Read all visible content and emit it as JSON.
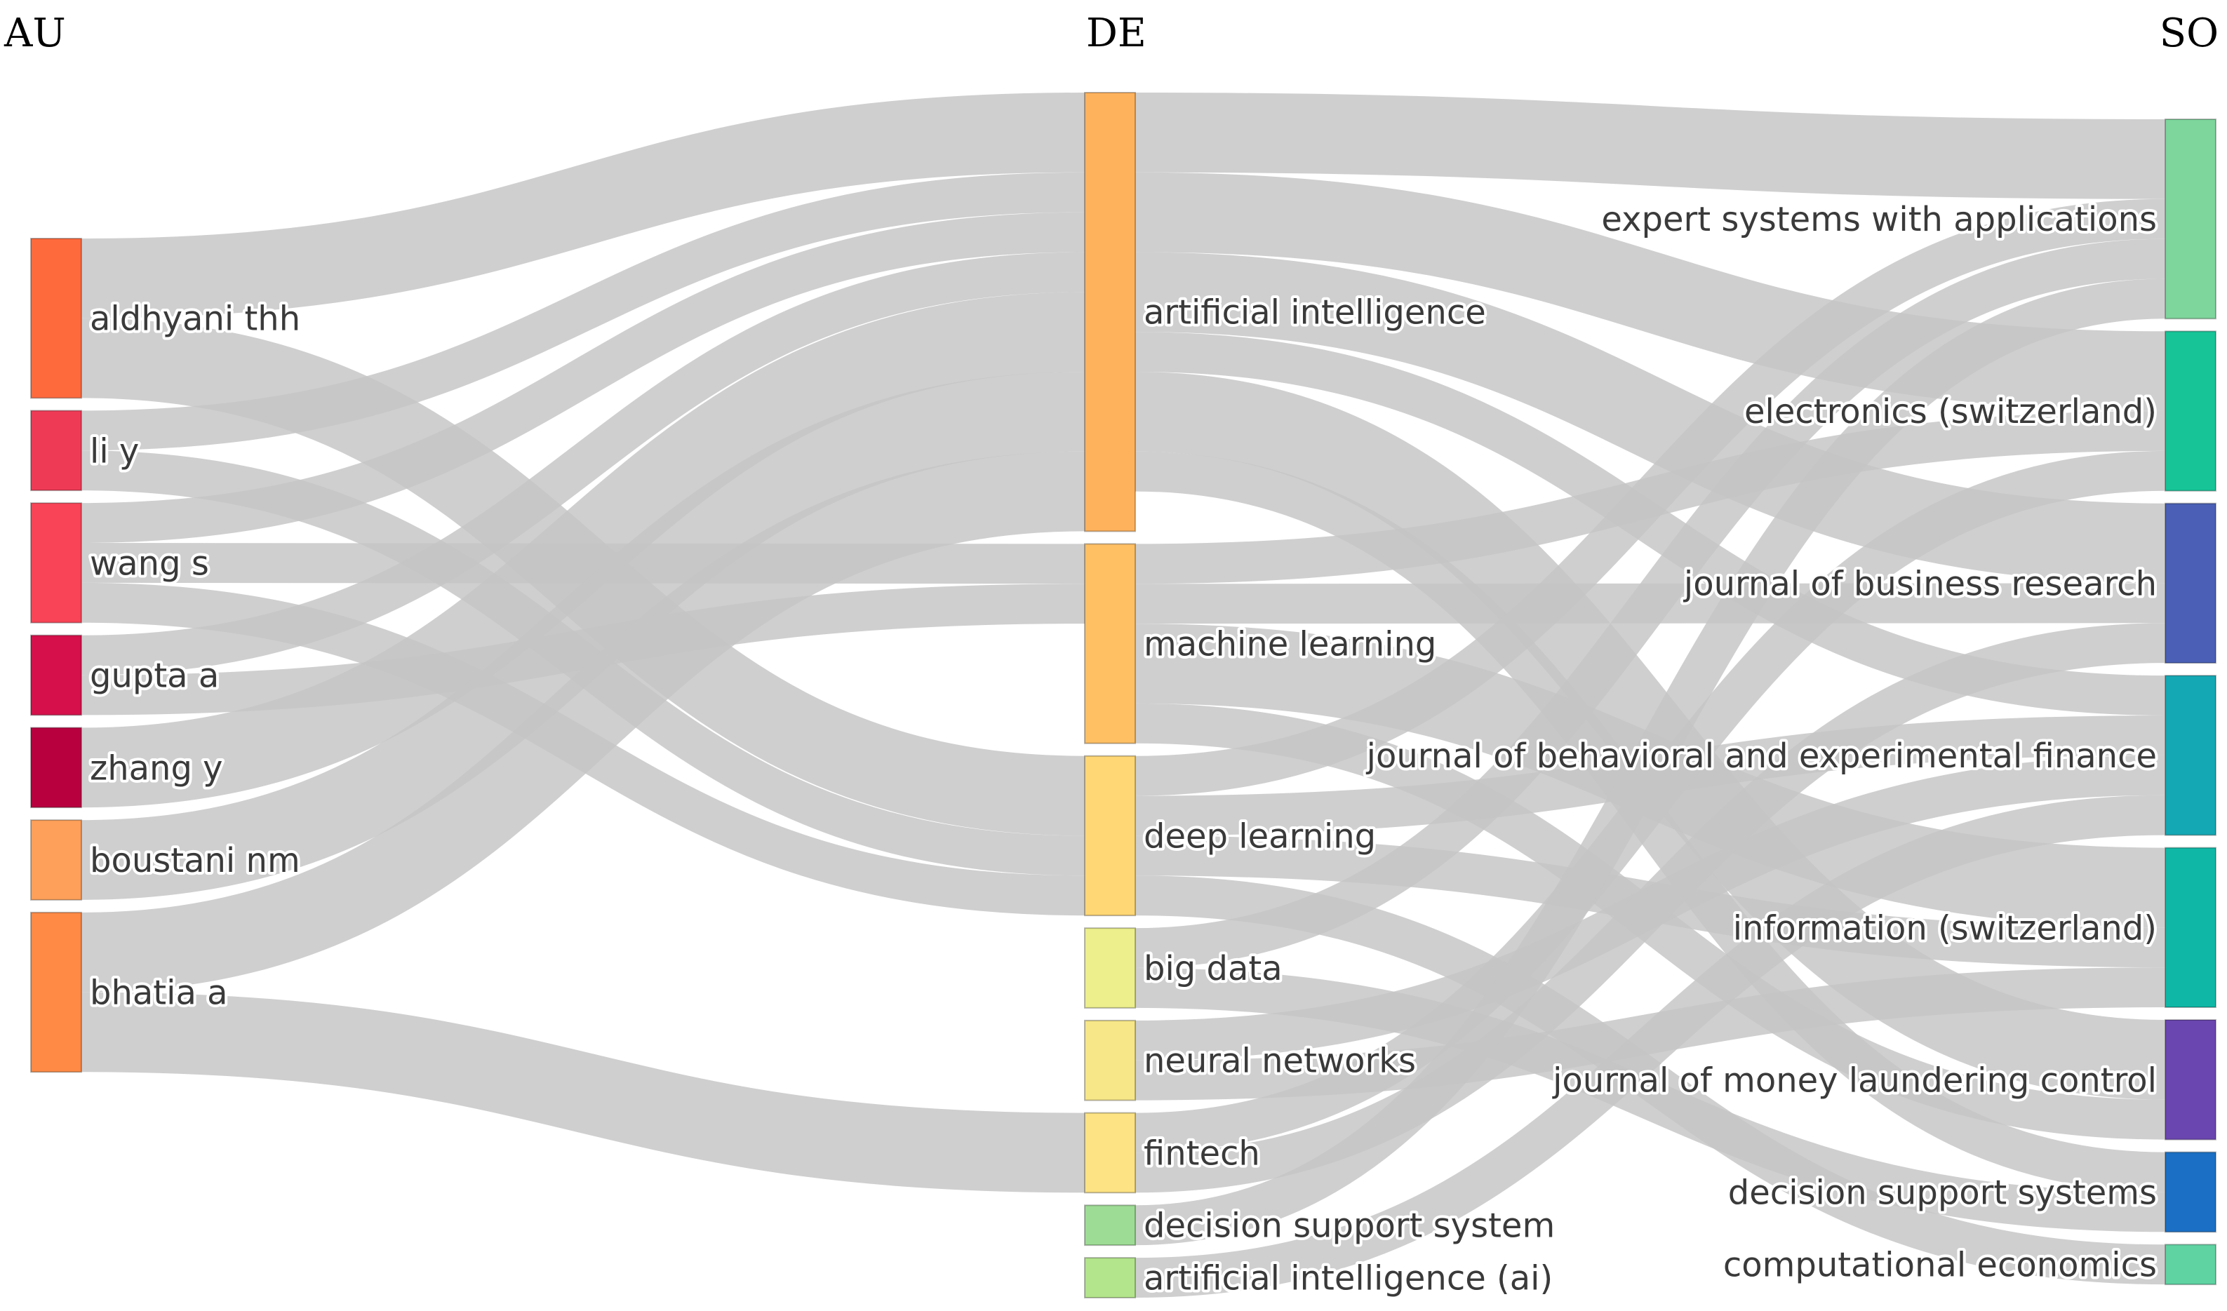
{
  "columns": [
    {
      "key": "AU",
      "label": "AU"
    },
    {
      "key": "DE",
      "label": "DE"
    },
    {
      "key": "SO",
      "label": "SO"
    }
  ],
  "link_color": "#c4c4c4",
  "nodes": [
    {
      "id": "aldhyani",
      "column": "AU",
      "label": "aldhyani thh",
      "color": "#ff6a3d"
    },
    {
      "id": "liy",
      "column": "AU",
      "label": "li y",
      "color": "#ef3a56"
    },
    {
      "id": "wangs",
      "column": "AU",
      "label": "wang s",
      "color": "#f84456"
    },
    {
      "id": "guptaa",
      "column": "AU",
      "label": "gupta a",
      "color": "#d5104a"
    },
    {
      "id": "zhangy",
      "column": "AU",
      "label": "zhang y",
      "color": "#b8003f"
    },
    {
      "id": "boustani",
      "column": "AU",
      "label": "boustani nm",
      "color": "#ffa05a"
    },
    {
      "id": "bhatia",
      "column": "AU",
      "label": "bhatia a",
      "color": "#ff8a45"
    },
    {
      "id": "ai",
      "column": "DE",
      "label": "artificial intelligence",
      "color": "#ffb25c"
    },
    {
      "id": "ml",
      "column": "DE",
      "label": "machine learning",
      "color": "#ffc064"
    },
    {
      "id": "dl",
      "column": "DE",
      "label": "deep learning",
      "color": "#ffd775"
    },
    {
      "id": "bd",
      "column": "DE",
      "label": "big data",
      "color": "#ecef8c"
    },
    {
      "id": "nn",
      "column": "DE",
      "label": "neural networks",
      "color": "#f7e788"
    },
    {
      "id": "ft",
      "column": "DE",
      "label": "fintech",
      "color": "#fde383"
    },
    {
      "id": "dss",
      "column": "DE",
      "label": "decision support system",
      "color": "#9ddc94"
    },
    {
      "id": "aiai",
      "column": "DE",
      "label": "artificial intelligence (ai)",
      "color": "#b3e58c"
    },
    {
      "id": "eswa",
      "column": "SO",
      "label": "expert systems with applications",
      "color": "#7ed69c"
    },
    {
      "id": "elec",
      "column": "SO",
      "label": "electronics (switzerland)",
      "color": "#16c497"
    },
    {
      "id": "jbr",
      "column": "SO",
      "label": "journal of business research",
      "color": "#4a5fb5"
    },
    {
      "id": "jbef",
      "column": "SO",
      "label": "journal of behavioral and experimental finance",
      "color": "#14a8b4"
    },
    {
      "id": "info",
      "column": "SO",
      "label": "information (switzerland)",
      "color": "#0fb8a6"
    },
    {
      "id": "jmlc",
      "column": "SO",
      "label": "journal of money laundering control",
      "color": "#6a46b0"
    },
    {
      "id": "dsys",
      "column": "SO",
      "label": "decision support systems",
      "color": "#1b6fc4"
    },
    {
      "id": "ce",
      "column": "SO",
      "label": "computational economics",
      "color": "#5fd3a2"
    }
  ],
  "links": [
    {
      "source": "aldhyani",
      "target": "ai",
      "value": 2
    },
    {
      "source": "aldhyani",
      "target": "dl",
      "value": 2
    },
    {
      "source": "liy",
      "target": "ai",
      "value": 1
    },
    {
      "source": "liy",
      "target": "dl",
      "value": 1
    },
    {
      "source": "wangs",
      "target": "ai",
      "value": 1
    },
    {
      "source": "wangs",
      "target": "ml",
      "value": 1
    },
    {
      "source": "wangs",
      "target": "dl",
      "value": 1
    },
    {
      "source": "guptaa",
      "target": "ai",
      "value": 1
    },
    {
      "source": "guptaa",
      "target": "ml",
      "value": 1
    },
    {
      "source": "zhangy",
      "target": "ai",
      "value": 2
    },
    {
      "source": "boustani",
      "target": "ai",
      "value": 2
    },
    {
      "source": "bhatia",
      "target": "ai",
      "value": 2
    },
    {
      "source": "bhatia",
      "target": "ft",
      "value": 2
    },
    {
      "source": "ai",
      "target": "eswa",
      "value": 2
    },
    {
      "source": "ai",
      "target": "elec",
      "value": 2
    },
    {
      "source": "ai",
      "target": "jbr",
      "value": 2
    },
    {
      "source": "ai",
      "target": "jbef",
      "value": 1
    },
    {
      "source": "ai",
      "target": "jmlc",
      "value": 2
    },
    {
      "source": "ai",
      "target": "dsys",
      "value": 1
    },
    {
      "source": "ml",
      "target": "elec",
      "value": 1
    },
    {
      "source": "ml",
      "target": "jbr",
      "value": 1
    },
    {
      "source": "ml",
      "target": "info",
      "value": 2
    },
    {
      "source": "ml",
      "target": "jmlc",
      "value": 1
    },
    {
      "source": "dl",
      "target": "eswa",
      "value": 1
    },
    {
      "source": "dl",
      "target": "info",
      "value": 1
    },
    {
      "source": "dl",
      "target": "jbef",
      "value": 1
    },
    {
      "source": "dl",
      "target": "ce",
      "value": 1
    },
    {
      "source": "bd",
      "target": "eswa",
      "value": 1
    },
    {
      "source": "bd",
      "target": "dsys",
      "value": 1
    },
    {
      "source": "nn",
      "target": "jbef",
      "value": 1
    },
    {
      "source": "nn",
      "target": "info",
      "value": 1
    },
    {
      "source": "ft",
      "target": "elec",
      "value": 1
    },
    {
      "source": "ft",
      "target": "jbr",
      "value": 1
    },
    {
      "source": "dss",
      "target": "eswa",
      "value": 1
    },
    {
      "source": "aiai",
      "target": "jbef",
      "value": 1
    }
  ]
}
